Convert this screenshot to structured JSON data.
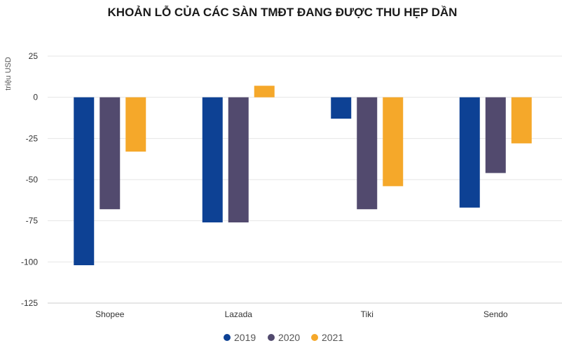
{
  "colors": {
    "2019": "#0d4194",
    "2020": "#524a6e",
    "2021": "#f5a82a"
  },
  "chart_data": {
    "type": "bar",
    "title": "KHOẢN LỖ CỦA CÁC SÀN TMĐT ĐANG ĐƯỢC THU HẸP DẦN",
    "ylabel": "triệu USD",
    "xlabel": "",
    "categories": [
      "Shopee",
      "Lazada",
      "Tiki",
      "Sendo"
    ],
    "series": [
      {
        "name": "2019",
        "color": "#0d4194",
        "values": [
          -102,
          -76,
          -13,
          -67
        ]
      },
      {
        "name": "2020",
        "color": "#524a6e",
        "values": [
          -68,
          -76,
          -68,
          -46
        ]
      },
      {
        "name": "2021",
        "color": "#f5a82a",
        "values": [
          -33,
          7,
          -54,
          -28
        ]
      }
    ],
    "ylim": [
      -125,
      25
    ],
    "yticks": [
      25,
      0,
      -25,
      -50,
      -75,
      -100,
      -125
    ],
    "grid": true,
    "legend_position": "bottom-center"
  }
}
